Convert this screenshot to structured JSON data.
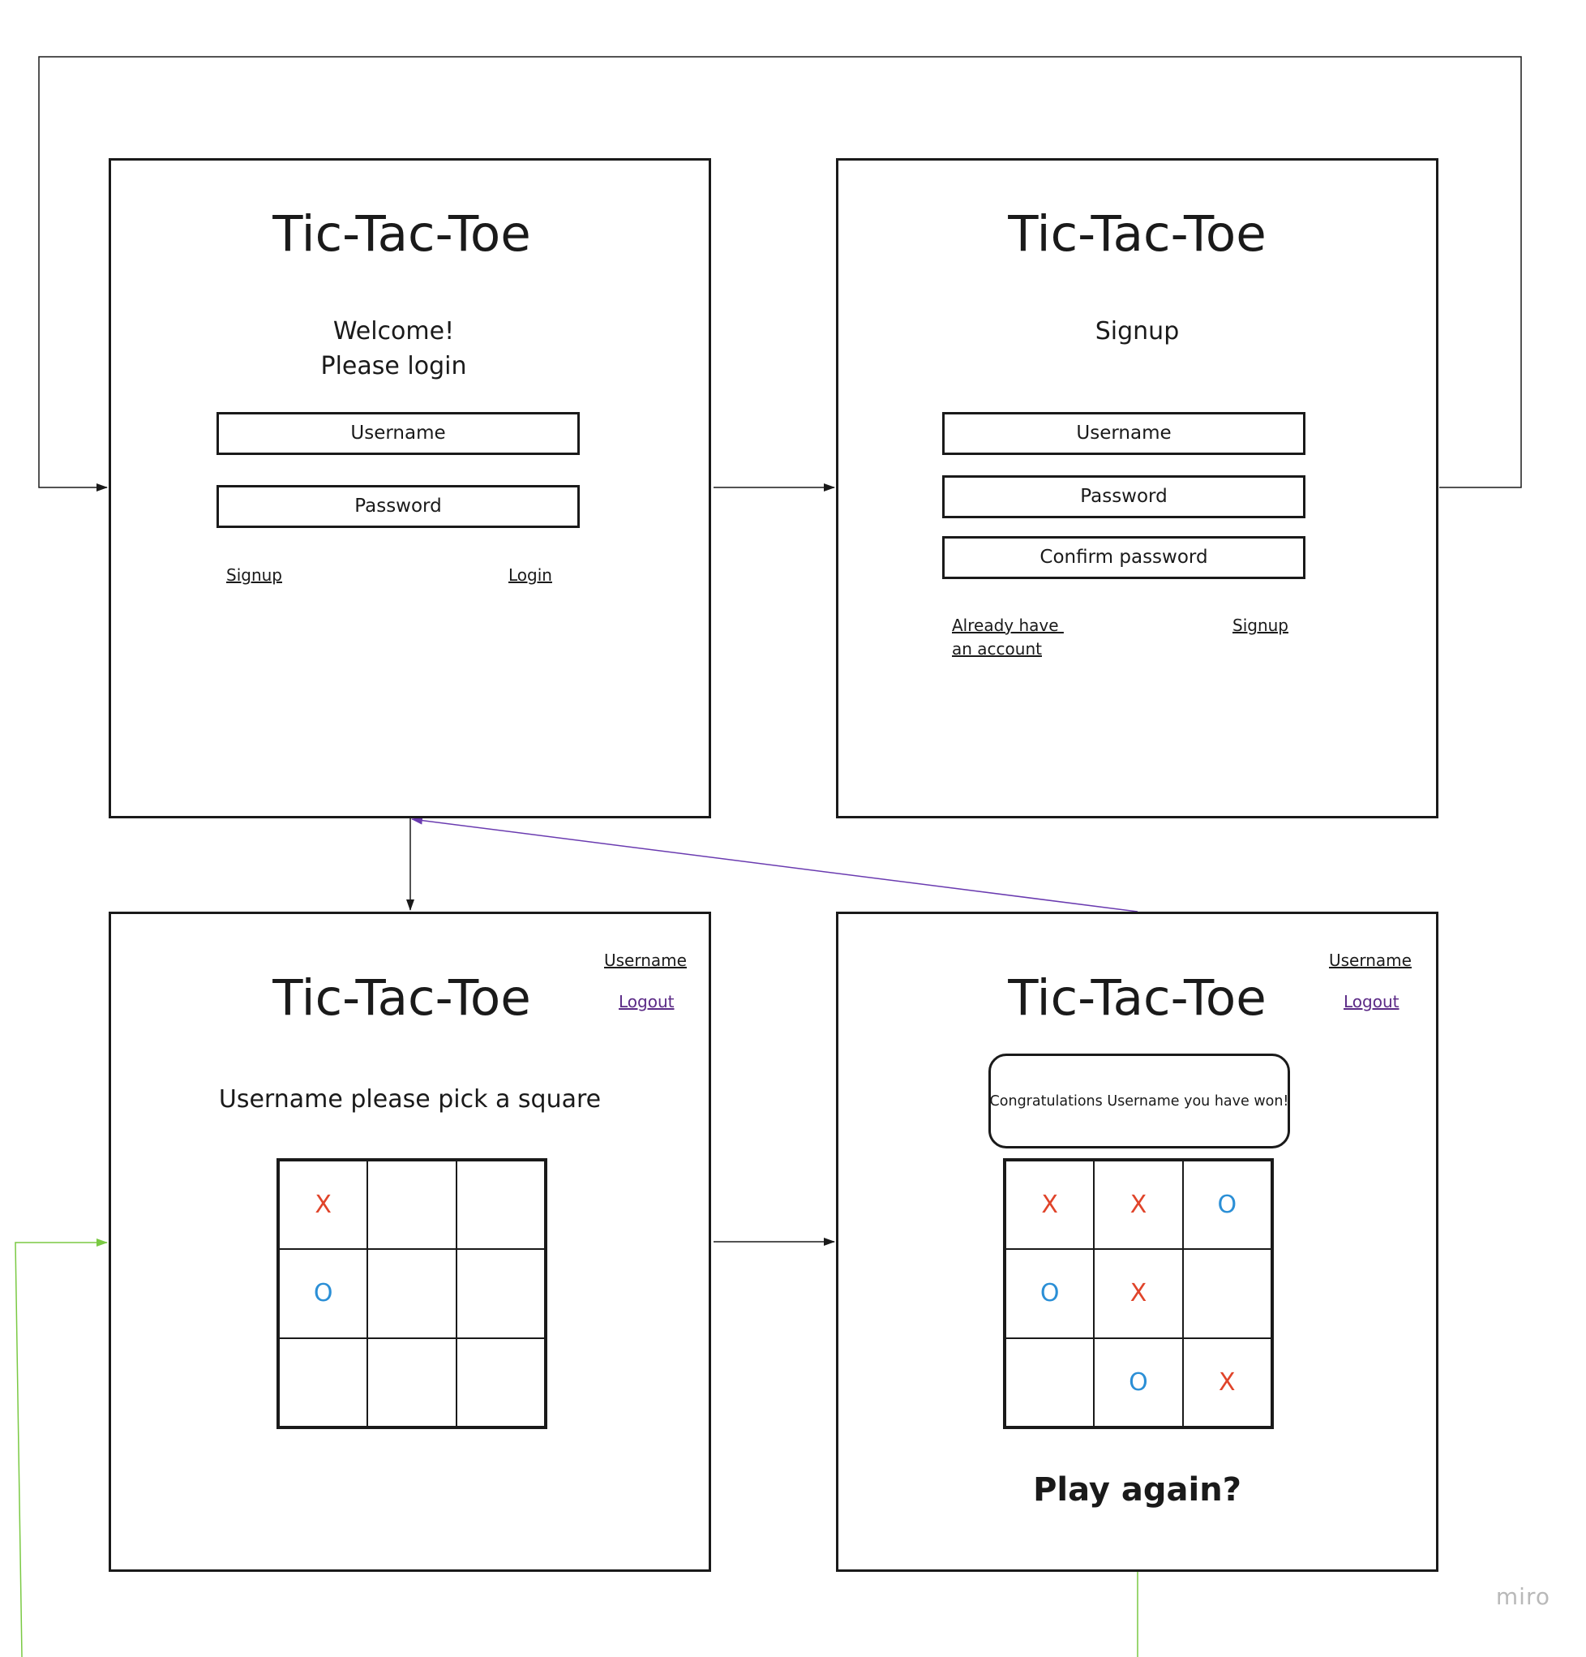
{
  "login_screen": {
    "title": "Tic-Tac-Toe",
    "welcome": "Welcome!",
    "prompt": "Please login",
    "username_field": "Username",
    "password_field": "Password",
    "signup_link": "Signup",
    "login_link": "Login"
  },
  "signup_screen": {
    "title": "Tic-Tac-Toe",
    "heading": "Signup",
    "username_field": "Username",
    "password_field": "Password",
    "confirm_field": "Confirm password",
    "existing_account_line1": "Already have ",
    "existing_account_line2": "an account",
    "signup_link": "Signup"
  },
  "game_screen": {
    "title": "Tic-Tac-Toe",
    "user_link": "Username",
    "logout_link": "Logout",
    "instruction": "Username please pick a square",
    "board": [
      "X",
      "",
      "",
      "O",
      "",
      "",
      "",
      "",
      ""
    ]
  },
  "win_screen": {
    "title": "Tic-Tac-Toe",
    "user_link": "Username",
    "logout_link": "Logout",
    "message": "Congratulations Username you have won!",
    "board": [
      "X",
      "X",
      "O",
      "O",
      "X",
      "",
      "",
      "O",
      "X"
    ],
    "play_again": "Play again?"
  },
  "colors": {
    "x_mark": "#e0442a",
    "o_mark": "#2b8fd6",
    "logout_link": "#5b2a86",
    "arrow_default": "#1a1a1a",
    "arrow_logout": "#6a3bb0",
    "arrow_play_again": "#7ac943"
  },
  "watermark": "miro"
}
